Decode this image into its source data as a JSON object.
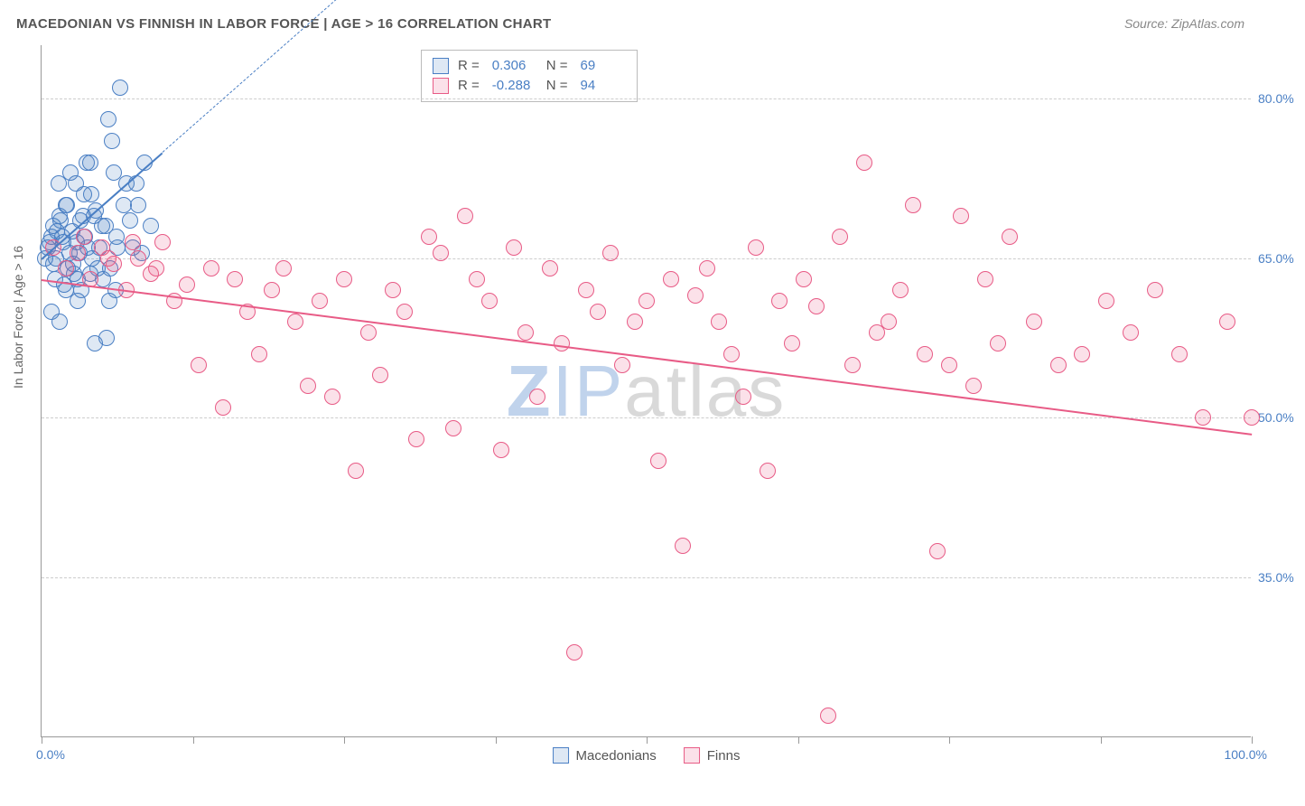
{
  "title": "MACEDONIAN VS FINNISH IN LABOR FORCE | AGE > 16 CORRELATION CHART",
  "source": "Source: ZipAtlas.com",
  "ylabel": "In Labor Force | Age > 16",
  "watermark": {
    "z": "Z",
    "ip": "IP",
    "atlas": "atlas"
  },
  "chart": {
    "type": "scatter",
    "background_color": "#ffffff",
    "grid_color": "#cccccc",
    "axis_color": "#999999",
    "xlim": [
      0,
      100
    ],
    "ylim": [
      20,
      85
    ],
    "ytick_values": [
      35.0,
      50.0,
      65.0,
      80.0
    ],
    "ytick_labels": [
      "35.0%",
      "50.0%",
      "65.0%",
      "80.0%"
    ],
    "xtick_values": [
      0,
      12.5,
      25,
      37.5,
      50,
      62.5,
      75,
      87.5,
      100
    ],
    "xaxis_left_label": "0.0%",
    "xaxis_right_label": "100.0%",
    "label_color": "#4a7fc4",
    "label_fontsize": 14,
    "title_fontsize": 15,
    "point_radius": 9,
    "point_border_width": 1.5,
    "point_fill_opacity": 0.18
  },
  "series": [
    {
      "name": "Macedonians",
      "color": "#4a7fc4",
      "fill": "rgba(74,127,196,0.18)",
      "R": "0.306",
      "N": "69",
      "trend": {
        "x1": 0,
        "y1": 65,
        "x2": 10,
        "y2": 75,
        "dash_x2": 28,
        "dash_y2": 93,
        "width": 2.5
      },
      "points": [
        [
          0.5,
          66
        ],
        [
          0.8,
          67
        ],
        [
          1,
          68
        ],
        [
          1.2,
          65
        ],
        [
          1.5,
          69
        ],
        [
          1.8,
          66.5
        ],
        [
          2,
          70
        ],
        [
          2.2,
          64
        ],
        [
          2.5,
          67.5
        ],
        [
          2.8,
          72
        ],
        [
          3,
          63
        ],
        [
          3.2,
          68.5
        ],
        [
          3.5,
          71
        ],
        [
          3.8,
          66
        ],
        [
          4,
          74
        ],
        [
          4.2,
          65
        ],
        [
          4.5,
          69.5
        ],
        [
          5,
          68
        ],
        [
          5.5,
          78
        ],
        [
          5.8,
          76
        ],
        [
          6,
          73
        ],
        [
          6.2,
          67
        ],
        [
          6.5,
          81
        ],
        [
          7,
          72
        ],
        [
          7.5,
          66
        ],
        [
          8,
          70
        ],
        [
          8.5,
          74
        ],
        [
          9,
          68
        ],
        [
          2,
          62
        ],
        [
          3,
          61
        ],
        [
          4,
          63.5
        ],
        [
          1,
          64.5
        ],
        [
          2.3,
          65.5
        ],
        [
          1.7,
          67
        ],
        [
          3.4,
          69
        ],
        [
          4.1,
          71
        ],
        [
          2.9,
          66.5
        ],
        [
          0.3,
          65
        ],
        [
          0.7,
          66.5
        ],
        [
          1.3,
          67.5
        ],
        [
          1.6,
          68.5
        ],
        [
          2.1,
          70
        ],
        [
          2.6,
          64.5
        ],
        [
          3.1,
          65.5
        ],
        [
          3.6,
          67
        ],
        [
          4.3,
          69
        ],
        [
          4.8,
          66
        ],
        [
          5.3,
          68
        ],
        [
          5.7,
          64
        ],
        [
          6.3,
          66
        ],
        [
          6.8,
          70
        ],
        [
          7.3,
          68.5
        ],
        [
          7.8,
          72
        ],
        [
          8.3,
          65.5
        ],
        [
          1.1,
          63
        ],
        [
          1.9,
          62.5
        ],
        [
          2.7,
          63.5
        ],
        [
          3.3,
          62
        ],
        [
          4.6,
          64
        ],
        [
          5.1,
          63
        ],
        [
          5.6,
          61
        ],
        [
          6.1,
          62
        ],
        [
          1.4,
          72
        ],
        [
          2.4,
          73
        ],
        [
          3.7,
          74
        ],
        [
          0.8,
          60
        ],
        [
          1.5,
          59
        ],
        [
          4.4,
          57
        ],
        [
          5.4,
          57.5
        ]
      ]
    },
    {
      "name": "Finns",
      "color": "#e85b86",
      "fill": "rgba(232,91,134,0.18)",
      "R": "-0.288",
      "N": "94",
      "trend": {
        "x1": 0,
        "y1": 63,
        "x2": 100,
        "y2": 48.5,
        "width": 2.5
      },
      "points": [
        [
          1,
          66
        ],
        [
          2,
          64
        ],
        [
          3,
          65.5
        ],
        [
          4,
          63
        ],
        [
          5,
          66
        ],
        [
          6,
          64.5
        ],
        [
          7,
          62
        ],
        [
          8,
          65
        ],
        [
          9,
          63.5
        ],
        [
          10,
          66.5
        ],
        [
          11,
          61
        ],
        [
          12,
          62.5
        ],
        [
          13,
          55
        ],
        [
          14,
          64
        ],
        [
          15,
          51
        ],
        [
          16,
          63
        ],
        [
          17,
          60
        ],
        [
          18,
          56
        ],
        [
          19,
          62
        ],
        [
          20,
          64
        ],
        [
          21,
          59
        ],
        [
          22,
          53
        ],
        [
          23,
          61
        ],
        [
          24,
          52
        ],
        [
          25,
          63
        ],
        [
          26,
          45
        ],
        [
          27,
          58
        ],
        [
          28,
          54
        ],
        [
          29,
          62
        ],
        [
          30,
          60
        ],
        [
          31,
          48
        ],
        [
          32,
          67
        ],
        [
          33,
          65.5
        ],
        [
          34,
          49
        ],
        [
          35,
          69
        ],
        [
          36,
          63
        ],
        [
          37,
          61
        ],
        [
          38,
          47
        ],
        [
          39,
          66
        ],
        [
          40,
          58
        ],
        [
          41,
          52
        ],
        [
          42,
          64
        ],
        [
          43,
          57
        ],
        [
          44,
          28
        ],
        [
          45,
          62
        ],
        [
          46,
          60
        ],
        [
          47,
          65.5
        ],
        [
          48,
          55
        ],
        [
          49,
          59
        ],
        [
          50,
          61
        ],
        [
          51,
          46
        ],
        [
          52,
          63
        ],
        [
          53,
          38
        ],
        [
          54,
          61.5
        ],
        [
          55,
          64
        ],
        [
          56,
          59
        ],
        [
          57,
          56
        ],
        [
          58,
          52
        ],
        [
          59,
          66
        ],
        [
          60,
          45
        ],
        [
          61,
          61
        ],
        [
          62,
          57
        ],
        [
          63,
          63
        ],
        [
          64,
          60.5
        ],
        [
          65,
          22
        ],
        [
          66,
          67
        ],
        [
          67,
          55
        ],
        [
          68,
          74
        ],
        [
          69,
          58
        ],
        [
          70,
          59
        ],
        [
          71,
          62
        ],
        [
          72,
          70
        ],
        [
          73,
          56
        ],
        [
          74,
          37.5
        ],
        [
          75,
          55
        ],
        [
          76,
          69
        ],
        [
          77,
          53
        ],
        [
          78,
          63
        ],
        [
          79,
          57
        ],
        [
          80,
          67
        ],
        [
          82,
          59
        ],
        [
          84,
          55
        ],
        [
          86,
          56
        ],
        [
          88,
          61
        ],
        [
          90,
          58
        ],
        [
          92,
          62
        ],
        [
          94,
          56
        ],
        [
          96,
          50
        ],
        [
          98,
          59
        ],
        [
          100,
          50
        ],
        [
          3.5,
          67
        ],
        [
          5.5,
          65
        ],
        [
          7.5,
          66.5
        ],
        [
          9.5,
          64
        ]
      ]
    }
  ],
  "legend_top": {
    "R_label": "R =",
    "N_label": "N ="
  },
  "legend_bottom": {
    "items": [
      "Macedonians",
      "Finns"
    ]
  }
}
